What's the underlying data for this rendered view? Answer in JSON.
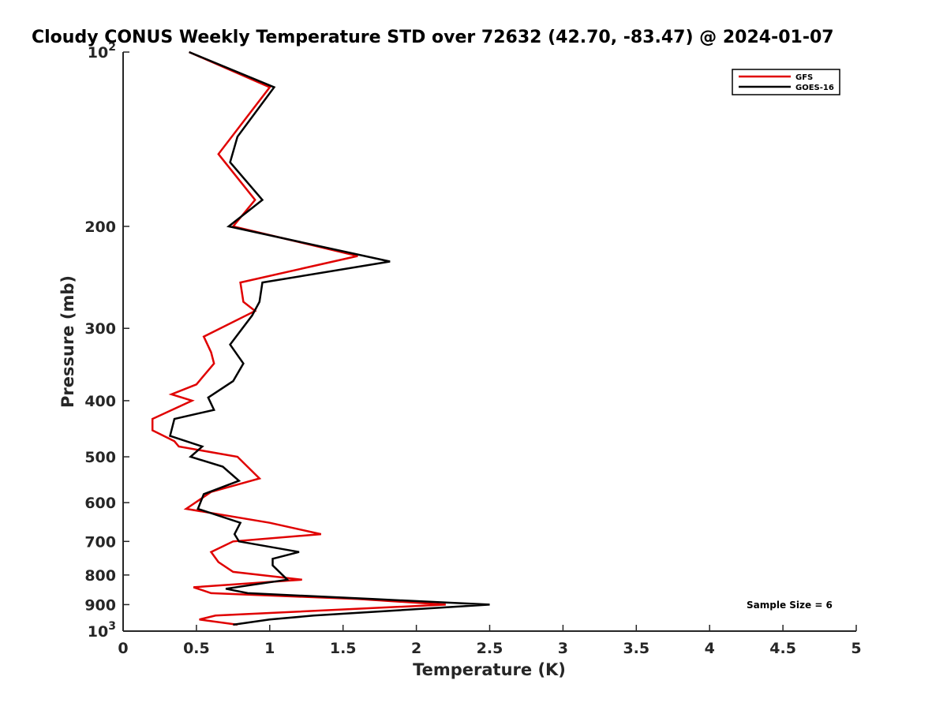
{
  "chart_data": {
    "type": "line",
    "title": "Cloudy CONUS Weekly Temperature STD over 72632 (42.70, -83.47) @ 2024-01-07",
    "xlabel": "Temperature (K)",
    "ylabel": "Pressure (mb)",
    "xlim": [
      0,
      5
    ],
    "ylim": [
      100,
      1000
    ],
    "y_scale": "log",
    "y_reversed": true,
    "xticks": [
      "0",
      "0.5",
      "1",
      "1.5",
      "2",
      "2.5",
      "3",
      "3.5",
      "4",
      "4.5",
      "5"
    ],
    "yticks": [
      {
        "value": 100,
        "base": "10",
        "exp": "2"
      },
      {
        "value": 200,
        "label": "200"
      },
      {
        "value": 300,
        "label": "300"
      },
      {
        "value": 400,
        "label": "400"
      },
      {
        "value": 500,
        "label": "500"
      },
      {
        "value": 600,
        "label": "600"
      },
      {
        "value": 700,
        "label": "700"
      },
      {
        "value": 800,
        "label": "800"
      },
      {
        "value": 900,
        "label": "900"
      },
      {
        "value": 1000,
        "base": "10",
        "exp": "3"
      }
    ],
    "grid": false,
    "legend_position": "top-right",
    "annotation": "Sample Size = 6",
    "series": [
      {
        "name": "GFS",
        "color": "#e00000",
        "points": [
          [
            0.45,
            100
          ],
          [
            1.0,
            115
          ],
          [
            0.65,
            150
          ],
          [
            0.9,
            180
          ],
          [
            0.75,
            200
          ],
          [
            1.6,
            225
          ],
          [
            0.8,
            250
          ],
          [
            0.82,
            270
          ],
          [
            0.9,
            280
          ],
          [
            0.55,
            310
          ],
          [
            0.6,
            330
          ],
          [
            0.62,
            345
          ],
          [
            0.5,
            375
          ],
          [
            0.33,
            390
          ],
          [
            0.47,
            400
          ],
          [
            0.2,
            430
          ],
          [
            0.2,
            450
          ],
          [
            0.35,
            470
          ],
          [
            0.38,
            480
          ],
          [
            0.78,
            500
          ],
          [
            0.93,
            545
          ],
          [
            0.6,
            575
          ],
          [
            0.43,
            615
          ],
          [
            1.0,
            650
          ],
          [
            1.35,
            680
          ],
          [
            0.75,
            700
          ],
          [
            0.6,
            730
          ],
          [
            0.65,
            760
          ],
          [
            0.75,
            790
          ],
          [
            1.22,
            815
          ],
          [
            0.48,
            840
          ],
          [
            0.6,
            860
          ],
          [
            1.6,
            880
          ],
          [
            2.2,
            900
          ],
          [
            0.63,
            940
          ],
          [
            0.52,
            955
          ],
          [
            0.78,
            975
          ]
        ]
      },
      {
        "name": "GOES-16",
        "color": "#000000",
        "points": [
          [
            0.45,
            100
          ],
          [
            1.03,
            115
          ],
          [
            0.78,
            140
          ],
          [
            0.73,
            155
          ],
          [
            0.95,
            180
          ],
          [
            0.72,
            200
          ],
          [
            1.82,
            230
          ],
          [
            0.95,
            250
          ],
          [
            0.93,
            270
          ],
          [
            0.88,
            285
          ],
          [
            0.73,
            320
          ],
          [
            0.82,
            345
          ],
          [
            0.75,
            370
          ],
          [
            0.58,
            395
          ],
          [
            0.62,
            415
          ],
          [
            0.35,
            430
          ],
          [
            0.32,
            460
          ],
          [
            0.54,
            480
          ],
          [
            0.46,
            500
          ],
          [
            0.68,
            520
          ],
          [
            0.79,
            550
          ],
          [
            0.55,
            580
          ],
          [
            0.51,
            615
          ],
          [
            0.8,
            650
          ],
          [
            0.76,
            680
          ],
          [
            0.79,
            700
          ],
          [
            1.2,
            730
          ],
          [
            1.02,
            750
          ],
          [
            1.02,
            770
          ],
          [
            1.12,
            815
          ],
          [
            0.7,
            845
          ],
          [
            0.85,
            860
          ],
          [
            1.7,
            880
          ],
          [
            2.5,
            900
          ],
          [
            1.3,
            940
          ],
          [
            1.0,
            955
          ],
          [
            0.75,
            975
          ]
        ]
      }
    ]
  }
}
